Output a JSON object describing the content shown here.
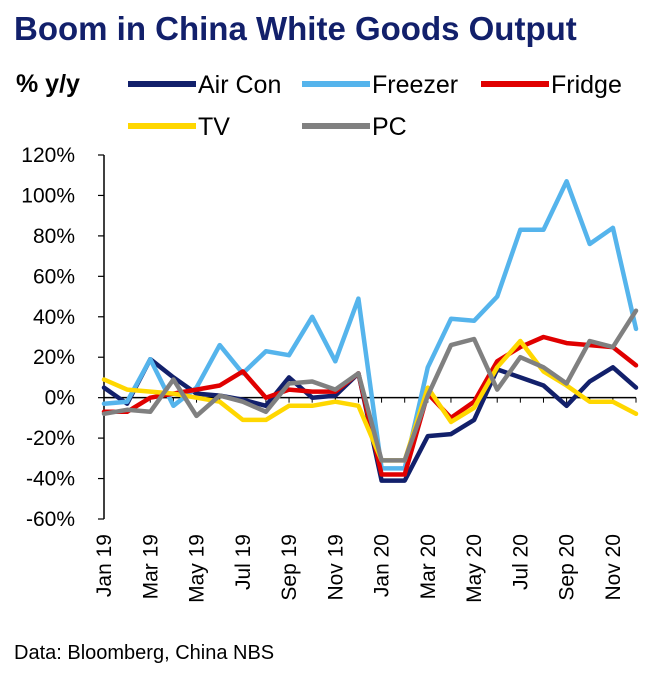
{
  "title": "Boom in China White Goods Output",
  "source": "Data: Bloomberg, China NBS",
  "chart_data": {
    "type": "line",
    "ylabel": "% y/y",
    "ylim": [
      -60,
      120
    ],
    "y_ticks": [
      "120%",
      "100%",
      "80%",
      "60%",
      "40%",
      "20%",
      "0%",
      "-20%",
      "-40%",
      "-60%"
    ],
    "y_tick_values": [
      120,
      100,
      80,
      60,
      40,
      20,
      0,
      -20,
      -40,
      -60
    ],
    "x": [
      "Jan 19",
      "Feb 19",
      "Mar 19",
      "Apr 19",
      "May 19",
      "Jun 19",
      "Jul 19",
      "Aug 19",
      "Sep 19",
      "Oct 19",
      "Nov 19",
      "Dec 19",
      "Jan 20",
      "Feb 20",
      "Mar 20",
      "Apr 20",
      "May 20",
      "Jun 20",
      "Jul 20",
      "Aug 20",
      "Sep 20",
      "Oct 20",
      "Nov 20",
      "Dec 20"
    ],
    "x_tick_labels": [
      "Jan 19",
      "Mar 19",
      "May 19",
      "Jul 19",
      "Sep 19",
      "Nov 19",
      "Jan 20",
      "Mar 20",
      "May 20",
      "Jul 20",
      "Sep 20",
      "Nov 20"
    ],
    "x_tick_indices": [
      0,
      2,
      4,
      6,
      8,
      10,
      12,
      14,
      16,
      18,
      20,
      22
    ],
    "grid": false,
    "legend": "top",
    "series": [
      {
        "name": "Air Con",
        "color": "#12206b",
        "values": [
          5,
          -3,
          19,
          10,
          2,
          1,
          -1,
          -4,
          10,
          0,
          1,
          12,
          -41,
          -41,
          -19,
          -18,
          -11,
          14,
          10,
          6,
          -4,
          8,
          15,
          5
        ]
      },
      {
        "name": "Freezer",
        "color": "#55b4ec",
        "values": [
          -3,
          -2,
          19,
          -4,
          5,
          26,
          12,
          23,
          21,
          40,
          18,
          49,
          -35,
          -35,
          15,
          39,
          38,
          50,
          83,
          83,
          107,
          76,
          84,
          34
        ]
      },
      {
        "name": "Fridge",
        "color": "#e00000",
        "values": [
          -7,
          -7,
          0,
          2,
          4,
          6,
          13,
          0,
          4,
          3,
          3,
          12,
          -38,
          -38,
          2,
          -10,
          -2,
          18,
          25,
          30,
          27,
          26,
          25,
          16
        ]
      },
      {
        "name": "TV",
        "color": "#ffd700",
        "values": [
          9,
          4,
          3,
          2,
          0,
          -2,
          -11,
          -11,
          -4,
          -4,
          -2,
          -4,
          -31,
          -31,
          5,
          -12,
          -5,
          15,
          28,
          13,
          6,
          -2,
          -2,
          -8
        ]
      },
      {
        "name": "PC",
        "color": "#808080",
        "values": [
          -8,
          -6,
          -7,
          9,
          -9,
          1,
          -2,
          -7,
          7,
          8,
          4,
          12,
          -31,
          -31,
          1,
          26,
          29,
          4,
          20,
          15,
          7,
          28,
          25,
          43
        ]
      }
    ]
  }
}
